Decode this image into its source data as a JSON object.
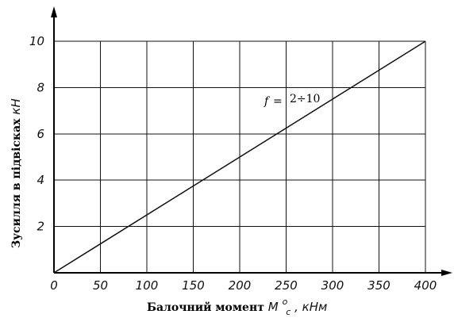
{
  "chart_data": {
    "type": "line",
    "x": [
      0,
      400
    ],
    "series": [
      {
        "values": [
          0,
          10
        ]
      }
    ],
    "xlim": [
      0,
      400
    ],
    "ylim": [
      0,
      10
    ],
    "x_ticks": [
      0,
      50,
      100,
      150,
      200,
      250,
      300,
      350,
      400
    ],
    "y_ticks": [
      2,
      4,
      6,
      8,
      10
    ],
    "x_tick_labels": [
      "0",
      "50",
      "100",
      "150",
      "200",
      "250",
      "300",
      "350",
      "400"
    ],
    "y_tick_labels": [
      "2",
      "4",
      "6",
      "8",
      "10"
    ],
    "xlabel": "Балочний момент M°c, кНм",
    "xlabel_parts": {
      "main": "Балочний момент ",
      "symbol": "M",
      "superscript": "o",
      "subscript": "c",
      "unit": ", кНм"
    },
    "ylabel": "Зусилля в підвісках кН",
    "ylabel_parts": {
      "main": "Зусилля в підвісках ",
      "unit": "кН"
    },
    "annotation": {
      "label": "f",
      "eq": "=",
      "value": "2÷10"
    },
    "grid": true,
    "line_color": "#111111",
    "grid_color": "#111111"
  }
}
